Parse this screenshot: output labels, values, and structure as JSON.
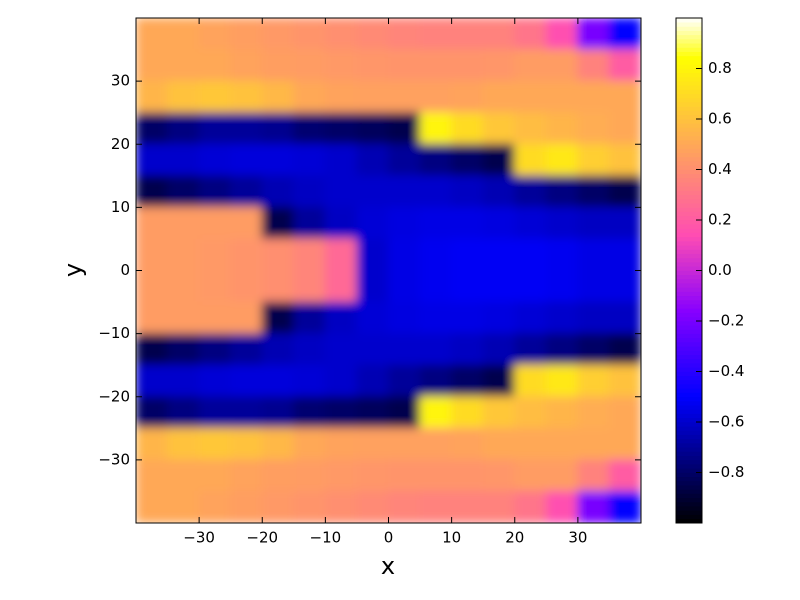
{
  "chart_data": {
    "type": "heatmap",
    "xlabel": "x",
    "ylabel": "y",
    "x": [
      -37.5,
      -32.5,
      -27.5,
      -22.5,
      -17.5,
      -12.5,
      -7.5,
      -2.5,
      2.5,
      7.5,
      12.5,
      17.5,
      22.5,
      27.5,
      32.5,
      37.5
    ],
    "y": [
      37.5,
      32.5,
      27.5,
      22.5,
      17.5,
      12.5,
      7.5,
      2.5,
      -2.5,
      -7.5,
      -12.5,
      -17.5,
      -22.5,
      -27.5,
      -32.5,
      -37.5
    ],
    "z": [
      [
        0.5,
        0.5,
        0.48,
        0.46,
        0.44,
        0.42,
        0.4,
        0.38,
        0.36,
        0.35,
        0.35,
        0.35,
        0.3,
        0.15,
        -0.2,
        -0.5
      ],
      [
        0.5,
        0.5,
        0.5,
        0.48,
        0.46,
        0.45,
        0.44,
        0.43,
        0.42,
        0.42,
        0.42,
        0.43,
        0.45,
        0.45,
        0.35,
        0.2
      ],
      [
        0.55,
        0.6,
        0.62,
        0.6,
        0.56,
        0.5,
        0.48,
        0.47,
        0.47,
        0.47,
        0.48,
        0.5,
        0.5,
        0.5,
        0.5,
        0.5
      ],
      [
        -0.8,
        -0.75,
        -0.7,
        -0.7,
        -0.72,
        -0.78,
        -0.8,
        -0.82,
        -0.85,
        0.8,
        0.7,
        0.62,
        0.58,
        0.55,
        0.52,
        0.5
      ],
      [
        -0.6,
        -0.6,
        -0.58,
        -0.57,
        -0.57,
        -0.58,
        -0.6,
        -0.65,
        -0.7,
        -0.75,
        -0.8,
        -0.85,
        0.7,
        0.75,
        0.65,
        0.6
      ],
      [
        -0.85,
        -0.8,
        -0.75,
        -0.7,
        -0.65,
        -0.62,
        -0.6,
        -0.6,
        -0.6,
        -0.6,
        -0.62,
        -0.65,
        -0.7,
        -0.75,
        -0.8,
        -0.85
      ],
      [
        0.45,
        0.45,
        0.45,
        0.45,
        -0.85,
        -0.7,
        -0.62,
        -0.58,
        -0.56,
        -0.55,
        -0.55,
        -0.56,
        -0.58,
        -0.6,
        -0.62,
        -0.62
      ],
      [
        0.45,
        0.45,
        0.44,
        0.42,
        0.4,
        0.36,
        0.25,
        -0.6,
        -0.55,
        -0.53,
        -0.52,
        -0.52,
        -0.52,
        -0.53,
        -0.55,
        -0.55
      ],
      [
        0.45,
        0.45,
        0.44,
        0.42,
        0.4,
        0.36,
        0.25,
        -0.6,
        -0.55,
        -0.53,
        -0.52,
        -0.52,
        -0.52,
        -0.53,
        -0.55,
        -0.55
      ],
      [
        0.45,
        0.45,
        0.45,
        0.45,
        -0.85,
        -0.7,
        -0.62,
        -0.58,
        -0.56,
        -0.55,
        -0.55,
        -0.56,
        -0.58,
        -0.6,
        -0.62,
        -0.62
      ],
      [
        -0.85,
        -0.8,
        -0.75,
        -0.7,
        -0.65,
        -0.62,
        -0.6,
        -0.6,
        -0.6,
        -0.6,
        -0.62,
        -0.65,
        -0.7,
        -0.75,
        -0.8,
        -0.85
      ],
      [
        -0.6,
        -0.6,
        -0.58,
        -0.57,
        -0.57,
        -0.58,
        -0.6,
        -0.65,
        -0.7,
        -0.75,
        -0.8,
        -0.85,
        0.7,
        0.75,
        0.65,
        0.6
      ],
      [
        -0.8,
        -0.75,
        -0.7,
        -0.7,
        -0.72,
        -0.78,
        -0.8,
        -0.82,
        -0.85,
        0.8,
        0.7,
        0.62,
        0.58,
        0.55,
        0.52,
        0.5
      ],
      [
        0.55,
        0.6,
        0.62,
        0.6,
        0.56,
        0.5,
        0.48,
        0.47,
        0.47,
        0.47,
        0.48,
        0.5,
        0.5,
        0.5,
        0.5,
        0.5
      ],
      [
        0.5,
        0.5,
        0.5,
        0.48,
        0.46,
        0.45,
        0.44,
        0.43,
        0.42,
        0.42,
        0.42,
        0.43,
        0.45,
        0.45,
        0.35,
        0.2
      ],
      [
        0.5,
        0.5,
        0.48,
        0.46,
        0.44,
        0.42,
        0.4,
        0.38,
        0.36,
        0.35,
        0.35,
        0.35,
        0.3,
        0.15,
        -0.2,
        -0.5
      ]
    ],
    "xlim": [
      -40,
      40
    ],
    "ylim": [
      -40,
      40
    ],
    "xticks": [
      {
        "value": -30,
        "label": "−30"
      },
      {
        "value": -20,
        "label": "−20"
      },
      {
        "value": -10,
        "label": "−10"
      },
      0,
      10,
      20,
      30
    ],
    "yticks": [
      {
        "value": -30,
        "label": "−30"
      },
      {
        "value": -20,
        "label": "−20"
      },
      {
        "value": -10,
        "label": "−10"
      },
      0,
      10,
      20,
      30
    ],
    "colormap": "gnuplot2",
    "clim": [
      -1,
      1
    ],
    "cticks": [
      {
        "value": -0.8,
        "label": "−0.8"
      },
      {
        "value": -0.6,
        "label": "−0.6"
      },
      {
        "value": -0.4,
        "label": "−0.4"
      },
      {
        "value": -0.2,
        "label": "−0.2"
      },
      {
        "value": 0,
        "label": "0.0"
      },
      0.2,
      0.4,
      0.6,
      0.8
    ]
  }
}
